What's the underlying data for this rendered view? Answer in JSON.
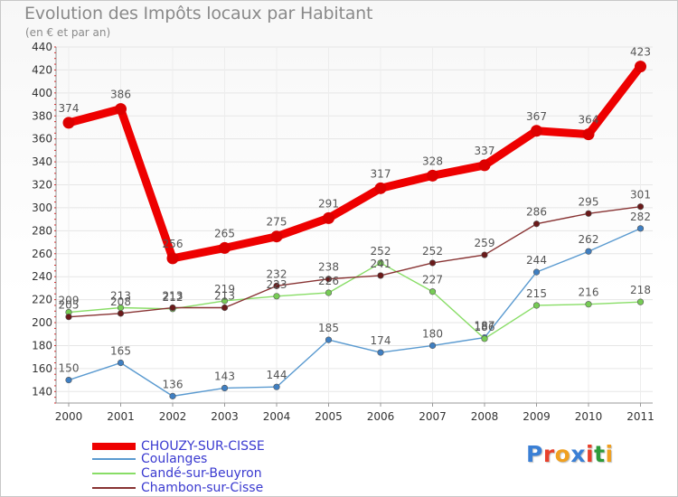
{
  "title": "Evolution des Impôts locaux par Habitant",
  "subtitle": "(en € et par an)",
  "logo": {
    "text": "Proxiti",
    "letter_colors": [
      "#3a7fd5",
      "#e8402b",
      "#f0a020",
      "#3a7fd5",
      "#e8402b",
      "#2e9b3a",
      "#f0a020"
    ]
  },
  "chart_data": {
    "type": "line",
    "x": [
      "2000",
      "2001",
      "2002",
      "2003",
      "2004",
      "2005",
      "2006",
      "2007",
      "2008",
      "2009",
      "2010",
      "2011"
    ],
    "ylim": [
      130,
      440
    ],
    "yticks": [
      140,
      160,
      180,
      200,
      220,
      240,
      260,
      280,
      300,
      320,
      340,
      360,
      380,
      400,
      420,
      440
    ],
    "grid": true,
    "series": [
      {
        "name": "CHOUZY-SUR-CISSE",
        "color": "#ee0000",
        "point_color": "#dd0000",
        "values": [
          374,
          386,
          256,
          265,
          275,
          291,
          317,
          328,
          337,
          367,
          364,
          423
        ]
      },
      {
        "name": "Coulanges",
        "color": "#5a9ad0",
        "point_color": "#3f7fc2",
        "values": [
          150,
          165,
          136,
          143,
          144,
          185,
          174,
          180,
          187,
          244,
          262,
          282
        ]
      },
      {
        "name": "Candé-sur-Beuyron",
        "color": "#88dd66",
        "point_color": "#77cc55",
        "values": [
          209,
          213,
          212,
          219,
          223,
          226,
          252,
          227,
          186,
          215,
          216,
          218
        ]
      },
      {
        "name": "Chambon-sur-Cisse",
        "color": "#883333",
        "point_color": "#6a1a1a",
        "values": [
          205,
          208,
          213,
          213,
          232,
          238,
          241,
          252,
          259,
          286,
          295,
          301
        ]
      }
    ]
  }
}
